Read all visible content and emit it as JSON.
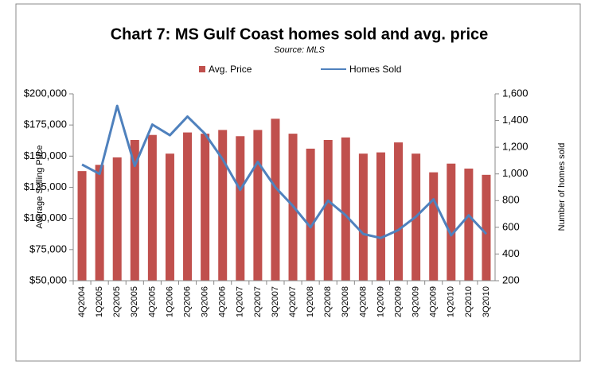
{
  "chart_data": {
    "type": "bar_line",
    "title": "Chart 7: MS Gulf Coast homes sold and avg. price",
    "subtitle": "Source: MLS",
    "y_label": "Average Selling Price",
    "y2_label": "Number of homes sold",
    "categories": [
      "4Q2004",
      "1Q2005",
      "2Q2005",
      "3Q2005",
      "4Q2005",
      "1Q2006",
      "2Q2006",
      "3Q2006",
      "4Q2006",
      "1Q2007",
      "2Q2007",
      "3Q2007",
      "4Q2007",
      "1Q2008",
      "2Q2008",
      "3Q2008",
      "4Q2008",
      "1Q2009",
      "2Q2009",
      "3Q2009",
      "4Q2009",
      "1Q2010",
      "2Q2010",
      "3Q2010"
    ],
    "series": [
      {
        "name": "Avg. Price",
        "type": "bar",
        "color": "#c0504d",
        "axis": "y",
        "values": [
          138000,
          143000,
          149000,
          163000,
          167000,
          152000,
          169000,
          168000,
          171000,
          166000,
          171000,
          180000,
          168000,
          156000,
          163000,
          165000,
          152000,
          153000,
          161000,
          152000,
          137000,
          144000,
          140000,
          135000
        ]
      },
      {
        "name": "Homes Sold",
        "type": "line",
        "color": "#4f81bd",
        "axis": "y2",
        "values": [
          1070,
          1000,
          1510,
          1060,
          1370,
          1290,
          1430,
          1300,
          1110,
          880,
          1090,
          900,
          760,
          600,
          800,
          690,
          550,
          520,
          580,
          680,
          810,
          540,
          690,
          550
        ]
      }
    ],
    "ylim": [
      50000,
      200000
    ],
    "yticks": [
      {
        "value": 50000,
        "label": "$50,000"
      },
      {
        "value": 75000,
        "label": "$75,000"
      },
      {
        "value": 100000,
        "label": "$100,000"
      },
      {
        "value": 125000,
        "label": "$125,000"
      },
      {
        "value": 150000,
        "label": "$150,000"
      },
      {
        "value": 175000,
        "label": "$175,000"
      },
      {
        "value": 200000,
        "label": "$200,000"
      }
    ],
    "y2lim": [
      200,
      1600
    ],
    "y2ticks": [
      200,
      400,
      600,
      800,
      {
        "value": 1000,
        "label": "1,000"
      },
      {
        "value": 1200,
        "label": "1,200"
      },
      {
        "value": 1400,
        "label": "1,400"
      },
      {
        "value": 1600,
        "label": "1,600"
      }
    ],
    "legend": "top"
  }
}
